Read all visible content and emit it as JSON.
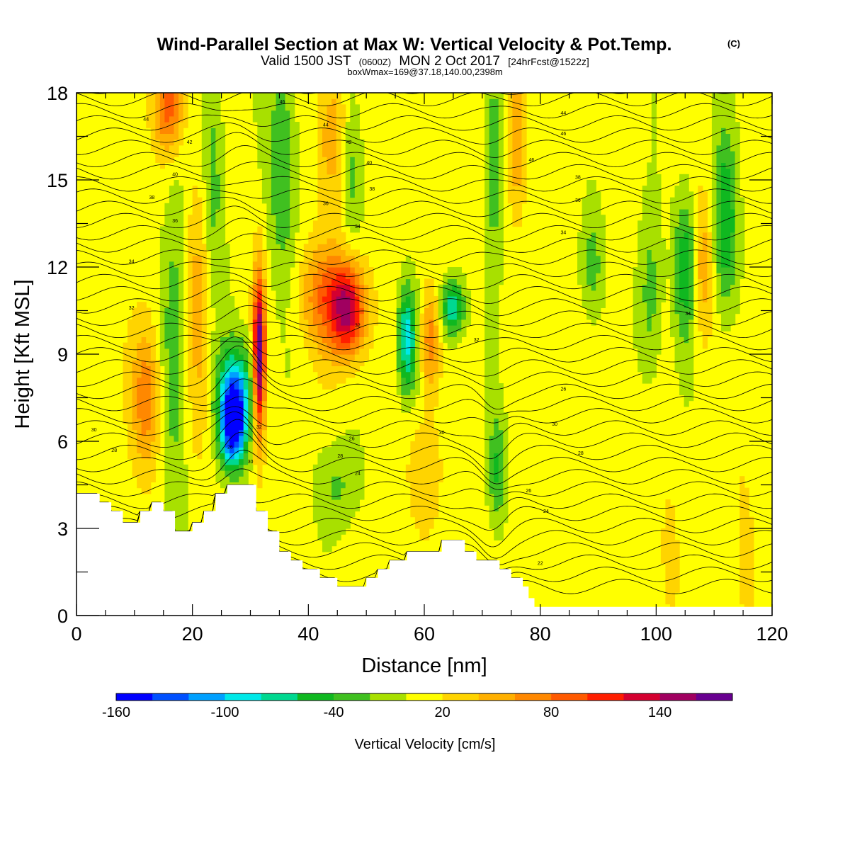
{
  "title": {
    "main": "Wind-Parallel Section at Max W: Vertical Velocity & Pot.Temp.",
    "main_mark": "(C)",
    "line2_a": "Valid 1500 JST",
    "line2_b": "(0600Z)",
    "line2_c": "MON 2 Oct 2017",
    "line2_d": "[24hrFcst@1522z]",
    "line3": "boxWmax=169@37.18,140.00,2398m"
  },
  "chart_data": {
    "type": "heatmap",
    "xlabel": "Distance [nm]",
    "ylabel": "Height [Kft MSL]",
    "xlim": [
      0,
      120
    ],
    "ylim": [
      0,
      18
    ],
    "x_ticks": [
      0,
      20,
      40,
      60,
      80,
      100,
      120
    ],
    "y_ticks": [
      0,
      3,
      6,
      9,
      12,
      15,
      18
    ],
    "colorbar": {
      "label": "Vertical Velocity [cm/s]",
      "tick_labels": [
        "-160",
        "-100",
        "-40",
        "20",
        "80",
        "140"
      ],
      "tick_values": [
        -160,
        -100,
        -40,
        20,
        80,
        140
      ],
      "range": [
        -160,
        180
      ],
      "step": 20,
      "colors": [
        "#0000ff",
        "#0050ff",
        "#00a0ff",
        "#00e8e8",
        "#00d890",
        "#10b820",
        "#40c020",
        "#a8e000",
        "#ffff00",
        "#ffd400",
        "#ffb000",
        "#ff8800",
        "#ff5a00",
        "#ff1e00",
        "#d40030",
        "#a00060",
        "#680090"
      ]
    },
    "terrain_top_kft": [
      [
        0,
        4.2
      ],
      [
        4,
        4.2
      ],
      [
        4,
        3.9
      ],
      [
        6,
        3.9
      ],
      [
        6,
        3.6
      ],
      [
        8,
        3.6
      ],
      [
        8,
        3.2
      ],
      [
        11,
        3.2
      ],
      [
        11,
        3.6
      ],
      [
        13,
        3.6
      ],
      [
        13,
        3.9
      ],
      [
        15,
        3.9
      ],
      [
        15,
        3.6
      ],
      [
        17,
        3.6
      ],
      [
        17,
        2.9
      ],
      [
        20,
        2.9
      ],
      [
        20,
        3.2
      ],
      [
        22,
        3.2
      ],
      [
        22,
        3.6
      ],
      [
        24,
        3.6
      ],
      [
        24,
        4.2
      ],
      [
        26,
        4.2
      ],
      [
        26,
        4.5
      ],
      [
        31,
        4.5
      ],
      [
        31,
        3.6
      ],
      [
        33,
        3.6
      ],
      [
        33,
        2.9
      ],
      [
        35,
        2.9
      ],
      [
        35,
        2.2
      ],
      [
        37,
        2.2
      ],
      [
        37,
        1.9
      ],
      [
        39,
        1.9
      ],
      [
        39,
        1.6
      ],
      [
        42,
        1.6
      ],
      [
        42,
        1.3
      ],
      [
        45,
        1.3
      ],
      [
        45,
        1.0
      ],
      [
        50,
        1.0
      ],
      [
        50,
        1.3
      ],
      [
        52,
        1.3
      ],
      [
        52,
        1.6
      ],
      [
        54,
        1.6
      ],
      [
        54,
        1.9
      ],
      [
        57,
        1.9
      ],
      [
        57,
        2.2
      ],
      [
        63,
        2.2
      ],
      [
        63,
        2.6
      ],
      [
        67,
        2.6
      ],
      [
        67,
        2.2
      ],
      [
        69,
        2.2
      ],
      [
        69,
        1.9
      ],
      [
        73,
        1.9
      ],
      [
        73,
        1.6
      ],
      [
        75,
        1.6
      ],
      [
        75,
        1.3
      ],
      [
        77,
        1.3
      ],
      [
        77,
        1.0
      ],
      [
        78,
        1.0
      ],
      [
        78,
        0.6
      ],
      [
        79,
        0.6
      ],
      [
        79,
        0.3
      ],
      [
        120,
        0.3
      ]
    ],
    "vertical_velocity_features": [
      {
        "x": 27,
        "y": 6.5,
        "sx": 2.2,
        "sy": 1.4,
        "value": -160
      },
      {
        "x": 27.5,
        "y": 7.8,
        "sx": 3.2,
        "sy": 1.6,
        "value": -90
      },
      {
        "x": 31.5,
        "y": 9.0,
        "sx": 1.0,
        "sy": 2.8,
        "value": 170
      },
      {
        "x": 47,
        "y": 10.5,
        "sx": 3.0,
        "sy": 1.6,
        "value": 120
      },
      {
        "x": 43,
        "y": 11.0,
        "sx": 4.5,
        "sy": 1.8,
        "value": 70
      },
      {
        "x": 57,
        "y": 9.5,
        "sx": 1.6,
        "sy": 1.8,
        "value": -100
      },
      {
        "x": 65,
        "y": 10.6,
        "sx": 2.0,
        "sy": 1.0,
        "value": -90
      },
      {
        "x": 12,
        "y": 7.5,
        "sx": 2.4,
        "sy": 2.5,
        "value": 70
      },
      {
        "x": 17,
        "y": 9.0,
        "sx": 2.2,
        "sy": 5.5,
        "value": -40
      },
      {
        "x": 21,
        "y": 11.0,
        "sx": 2.0,
        "sy": 5.0,
        "value": 40
      },
      {
        "x": 16,
        "y": 17.5,
        "sx": 2.5,
        "sy": 1.5,
        "value": 80
      },
      {
        "x": 23.5,
        "y": 15.0,
        "sx": 2.0,
        "sy": 4.0,
        "value": -40
      },
      {
        "x": 35.5,
        "y": 15.5,
        "sx": 2.4,
        "sy": 4.0,
        "value": -50
      },
      {
        "x": 44,
        "y": 16.5,
        "sx": 2.6,
        "sy": 2.5,
        "value": 50
      },
      {
        "x": 47.5,
        "y": 15.5,
        "sx": 1.8,
        "sy": 3.0,
        "value": -40
      },
      {
        "x": 61,
        "y": 9.5,
        "sx": 1.6,
        "sy": 1.8,
        "value": 70
      },
      {
        "x": 72,
        "y": 16.0,
        "sx": 1.6,
        "sy": 3.5,
        "value": -50
      },
      {
        "x": 76,
        "y": 16.5,
        "sx": 1.6,
        "sy": 2.5,
        "value": 60
      },
      {
        "x": 89,
        "y": 12.0,
        "sx": 2.0,
        "sy": 2.0,
        "value": -40
      },
      {
        "x": 99,
        "y": 11.0,
        "sx": 2.0,
        "sy": 3.0,
        "value": -40
      },
      {
        "x": 105,
        "y": 12.0,
        "sx": 2.0,
        "sy": 2.5,
        "value": -60
      },
      {
        "x": 112,
        "y": 13.5,
        "sx": 2.0,
        "sy": 3.0,
        "value": -70
      },
      {
        "x": 108,
        "y": 12.0,
        "sx": 1.6,
        "sy": 2.5,
        "value": 50
      },
      {
        "x": 45,
        "y": 4.5,
        "sx": 4.0,
        "sy": 1.5,
        "value": -30
      },
      {
        "x": 60,
        "y": 5.0,
        "sx": 3.0,
        "sy": 2.0,
        "value": 30
      },
      {
        "x": 72.5,
        "y": 5.0,
        "sx": 1.5,
        "sy": 2.0,
        "value": -50
      },
      {
        "x": 91,
        "y": 3.0,
        "sx": 2.0,
        "sy": 4.0,
        "value": 10
      },
      {
        "x": 102,
        "y": 2.0,
        "sx": 2.0,
        "sy": 3.0,
        "value": 20
      },
      {
        "x": 115,
        "y": 3.0,
        "sx": 2.0,
        "sy": 4.0,
        "value": 15
      }
    ],
    "contour_labels": [
      {
        "x": 12,
        "y": 17.1,
        "text": "44"
      },
      {
        "x": 35.5,
        "y": 17.7,
        "text": "46"
      },
      {
        "x": 43,
        "y": 16.9,
        "text": "44"
      },
      {
        "x": 19.5,
        "y": 16.3,
        "text": "42"
      },
      {
        "x": 47,
        "y": 16.3,
        "text": "42"
      },
      {
        "x": 50.5,
        "y": 15.6,
        "text": "40"
      },
      {
        "x": 17,
        "y": 15.2,
        "text": "40"
      },
      {
        "x": 13,
        "y": 14.4,
        "text": "38"
      },
      {
        "x": 51,
        "y": 14.7,
        "text": "38"
      },
      {
        "x": 43,
        "y": 14.2,
        "text": "36"
      },
      {
        "x": 17,
        "y": 13.6,
        "text": "36"
      },
      {
        "x": 48.5,
        "y": 13.4,
        "text": "34"
      },
      {
        "x": 9.5,
        "y": 12.2,
        "text": "34"
      },
      {
        "x": 9.5,
        "y": 10.6,
        "text": "32"
      },
      {
        "x": 48.5,
        "y": 10.0,
        "text": "32"
      },
      {
        "x": 3,
        "y": 6.4,
        "text": "30"
      },
      {
        "x": 6.5,
        "y": 5.7,
        "text": "28"
      },
      {
        "x": 31.5,
        "y": 6.5,
        "text": "32"
      },
      {
        "x": 26.5,
        "y": 5.8,
        "text": "26"
      },
      {
        "x": 30,
        "y": 5.3,
        "text": "30"
      },
      {
        "x": 47.5,
        "y": 6.1,
        "text": "26"
      },
      {
        "x": 45.5,
        "y": 5.5,
        "text": "28"
      },
      {
        "x": 48.5,
        "y": 4.9,
        "text": "24"
      },
      {
        "x": 63,
        "y": 6.3,
        "text": "30"
      },
      {
        "x": 69,
        "y": 9.5,
        "text": "32"
      },
      {
        "x": 84,
        "y": 7.8,
        "text": "26"
      },
      {
        "x": 82.5,
        "y": 6.6,
        "text": "30"
      },
      {
        "x": 87,
        "y": 5.6,
        "text": "28"
      },
      {
        "x": 78,
        "y": 4.3,
        "text": "26"
      },
      {
        "x": 81,
        "y": 3.6,
        "text": "24"
      },
      {
        "x": 80,
        "y": 1.8,
        "text": "22"
      },
      {
        "x": 84,
        "y": 17.3,
        "text": "44"
      },
      {
        "x": 84,
        "y": 16.6,
        "text": "46"
      },
      {
        "x": 78.5,
        "y": 15.7,
        "text": "46"
      },
      {
        "x": 86.5,
        "y": 15.1,
        "text": "38"
      },
      {
        "x": 86.5,
        "y": 14.3,
        "text": "36"
      },
      {
        "x": 84,
        "y": 13.2,
        "text": "34"
      },
      {
        "x": 105.5,
        "y": 10.4,
        "text": "34"
      }
    ]
  }
}
